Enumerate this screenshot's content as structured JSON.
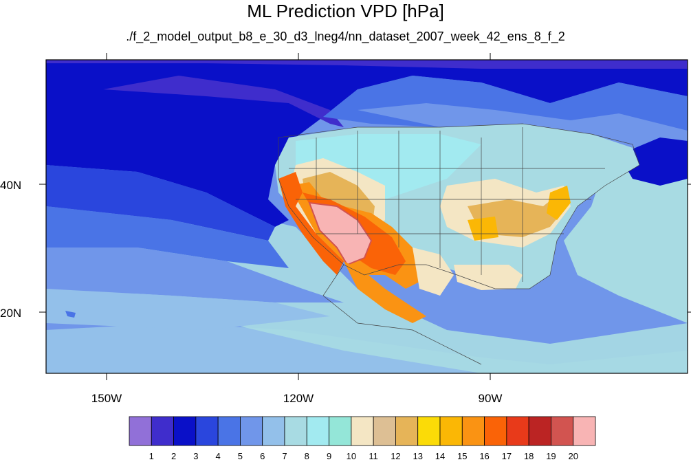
{
  "title": "ML Prediction VPD [hPa]",
  "subtitle": "./f_2_model_output_b8_e_30_d3_lneg4/nn_dataset_2007_week_42_ens_8_f_2",
  "lon_ticks": [
    "150W",
    "120W",
    "90W"
  ],
  "lat_ticks": [
    "40N",
    "20N"
  ],
  "colorbar": {
    "labels": [
      "1",
      "2",
      "3",
      "4",
      "5",
      "6",
      "7",
      "8",
      "9",
      "10",
      "11",
      "12",
      "13",
      "14",
      "15",
      "16",
      "17",
      "18",
      "19",
      "20"
    ],
    "colors": [
      "#9170d8",
      "#3f2dcc",
      "#0a10c8",
      "#2a46dd",
      "#4a74e6",
      "#7096ea",
      "#93c0ea",
      "#a8dbe3",
      "#a2eaf0",
      "#94e6d8",
      "#f4e6c4",
      "#ddbf94",
      "#e6b458",
      "#fbdb07",
      "#fbb705",
      "#fa9313",
      "#fa6307",
      "#e83a1a",
      "#bb2423",
      "#d25450",
      "#f8b4b4"
    ]
  }
}
